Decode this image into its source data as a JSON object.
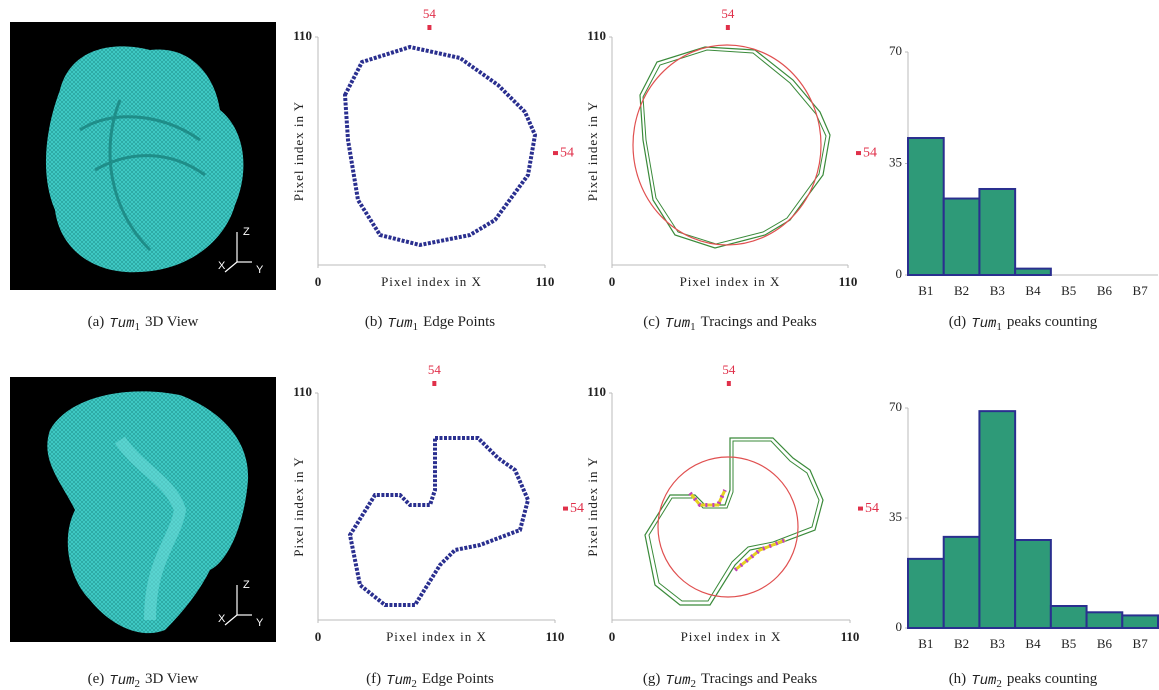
{
  "captions": [
    {
      "label": "(a)",
      "name": "Tum",
      "index": "1",
      "text": "3D View"
    },
    {
      "label": "(b)",
      "name": "Tum",
      "index": "1",
      "text": "Edge Points"
    },
    {
      "label": "(c)",
      "name": "Tum",
      "index": "1",
      "text": "Tracings and Peaks"
    },
    {
      "label": "(d)",
      "name": "Tum",
      "index": "1",
      "text": "peaks counting"
    },
    {
      "label": "(e)",
      "name": "Tum",
      "index": "2",
      "text": "3D View"
    },
    {
      "label": "(f)",
      "name": "Tum",
      "index": "2",
      "text": "Edge Points"
    },
    {
      "label": "(g)",
      "name": "Tum",
      "index": "2",
      "text": "Tracings and Peaks"
    },
    {
      "label": "(h)",
      "name": "Tum",
      "index": "2",
      "text": "peaks counting"
    }
  ],
  "views": [
    {
      "axes": [
        "X",
        "Y",
        "Z"
      ]
    },
    {
      "axes": [
        "X",
        "Y",
        "Z"
      ]
    }
  ],
  "plots": [
    {
      "xlabel": "Pixel index in X",
      "ylabel": "Pixel index in Y",
      "xlim": [
        0,
        110
      ],
      "ylim": [
        0,
        110
      ],
      "xticks": [
        0,
        110
      ],
      "yticks": [
        110
      ],
      "marker": 54
    },
    {
      "xlabel": "Pixel index in X",
      "ylabel": "Pixel index in Y",
      "xlim": [
        0,
        110
      ],
      "ylim": [
        0,
        110
      ],
      "xticks": [
        0,
        110
      ],
      "yticks": [
        110
      ],
      "marker": 54
    },
    {
      "xlabel": "Pixel index in X",
      "ylabel": "Pixel index in Y",
      "xlim": [
        0,
        110
      ],
      "ylim": [
        0,
        110
      ],
      "xticks": [
        0,
        110
      ],
      "yticks": [
        110
      ],
      "marker": 54
    },
    {
      "xlabel": "Pixel index in X",
      "ylabel": "Pixel index in Y",
      "xlim": [
        0,
        110
      ],
      "ylim": [
        0,
        110
      ],
      "xticks": [
        0,
        110
      ],
      "yticks": [
        110
      ],
      "marker": 54
    }
  ],
  "chart_data": [
    {
      "type": "bar",
      "categories": [
        "B1",
        "B2",
        "B3",
        "B4",
        "B5",
        "B6",
        "B7"
      ],
      "values": [
        43,
        24,
        27,
        2,
        0,
        0,
        0
      ],
      "ylim": [
        0,
        70
      ],
      "yticks": [
        0,
        35,
        70
      ],
      "color": "#2e9a78",
      "edgecolor": "#2a2f8f"
    },
    {
      "type": "bar",
      "categories": [
        "B1",
        "B2",
        "B3",
        "B4",
        "B5",
        "B6",
        "B7"
      ],
      "values": [
        22,
        29,
        69,
        28,
        7,
        5,
        4
      ],
      "ylim": [
        0,
        70
      ],
      "yticks": [
        0,
        35,
        70
      ],
      "color": "#2e9a78",
      "edgecolor": "#2a2f8f"
    }
  ]
}
